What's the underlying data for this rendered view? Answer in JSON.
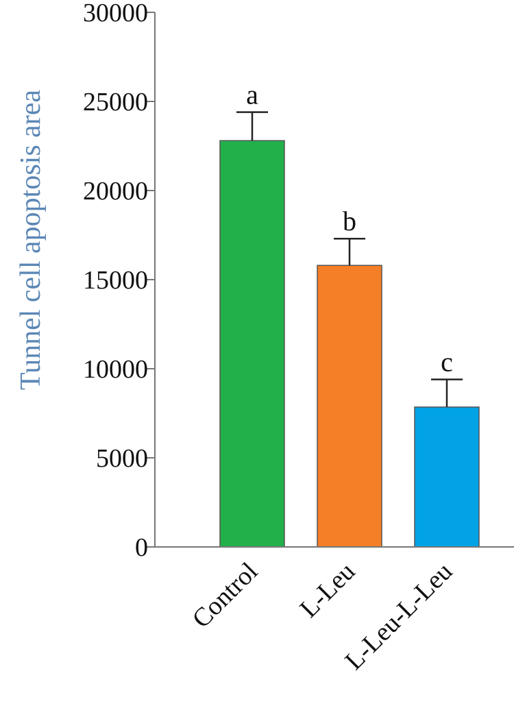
{
  "chart_data": {
    "type": "bar",
    "title": "",
    "xlabel": "",
    "ylabel": "Tunnel cell apoptosis area",
    "ylim": [
      0,
      30000
    ],
    "yticks": [
      "0",
      "5000",
      "10000",
      "15000",
      "20000",
      "25000",
      "30000"
    ],
    "categories": [
      "Control",
      "L-Leu",
      "L-Leu-L-Leu"
    ],
    "values": [
      22800,
      15800,
      7850
    ],
    "errors": [
      1600,
      1500,
      1550
    ],
    "labels": [
      "a",
      "b",
      "c"
    ],
    "colors": [
      "#22b04b",
      "#f47f26",
      "#02a2e6"
    ],
    "ylabel_color": "#5b87b6",
    "grid": false,
    "legend": "none"
  }
}
